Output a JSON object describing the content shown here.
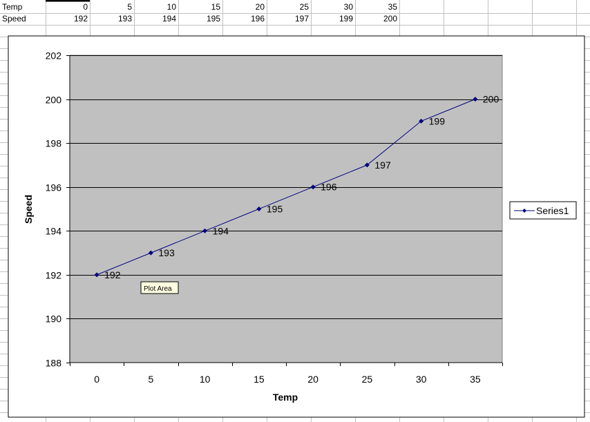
{
  "sheet": {
    "rows": [
      {
        "label": "Temp",
        "values": [
          "0",
          "5",
          "10",
          "15",
          "20",
          "25",
          "30",
          "35"
        ]
      },
      {
        "label": "Speed",
        "values": [
          "192",
          "193",
          "194",
          "195",
          "196",
          "197",
          "199",
          "200"
        ]
      }
    ]
  },
  "tooltip": "Plot Area",
  "legend": {
    "series_label": "Series1"
  },
  "colors": {
    "series": "#000080",
    "plot_area": "#c0c0c0",
    "tooltip": "#ffffe1"
  },
  "chart_data": {
    "type": "line",
    "x": [
      0,
      5,
      10,
      15,
      20,
      25,
      30,
      35
    ],
    "series": [
      {
        "name": "Series1",
        "values": [
          192,
          193,
          194,
          195,
          196,
          197,
          199,
          200
        ]
      }
    ],
    "xlabel": "Temp",
    "ylabel": "Speed",
    "ylim": [
      188,
      202
    ],
    "yticks": [
      188,
      190,
      192,
      194,
      196,
      198,
      200,
      202
    ],
    "xticks": [
      "0",
      "5",
      "10",
      "15",
      "20",
      "25",
      "30",
      "35"
    ],
    "grid": "horizontal",
    "legend_position": "right",
    "data_labels": [
      "192",
      "193",
      "194",
      "195",
      "196",
      "197",
      "199",
      "200"
    ]
  }
}
